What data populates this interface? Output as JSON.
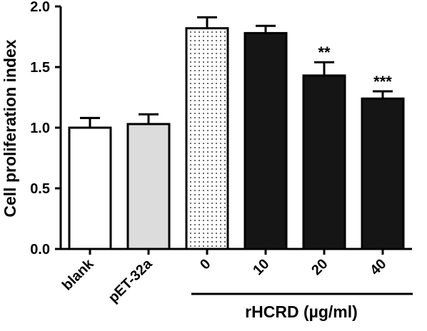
{
  "chart_data": {
    "type": "bar",
    "title": "",
    "ylabel": "Cell proliferation index",
    "xlabel": "",
    "ylim": [
      0,
      2.0
    ],
    "yticks": [
      "0.0",
      "0.5",
      "1.0",
      "1.5",
      "2.0"
    ],
    "categories": [
      "blank",
      "pET-32a",
      "0",
      "10",
      "20",
      "40"
    ],
    "values": [
      1.0,
      1.03,
      1.82,
      1.78,
      1.43,
      1.24
    ],
    "errors": [
      0.08,
      0.08,
      0.09,
      0.06,
      0.11,
      0.06
    ],
    "annotations": [
      "",
      "",
      "",
      "",
      "**",
      "***"
    ],
    "fills": [
      "white",
      "lightgray",
      "dotted",
      "black",
      "black",
      "black"
    ],
    "group_label": "rHCRD (µg/ml)",
    "group_categories": [
      "0",
      "10",
      "20",
      "40"
    ],
    "colors": {
      "bar_gray": "#dcdcdc",
      "bar_black": "#151515",
      "bar_white": "#ffffff"
    }
  }
}
